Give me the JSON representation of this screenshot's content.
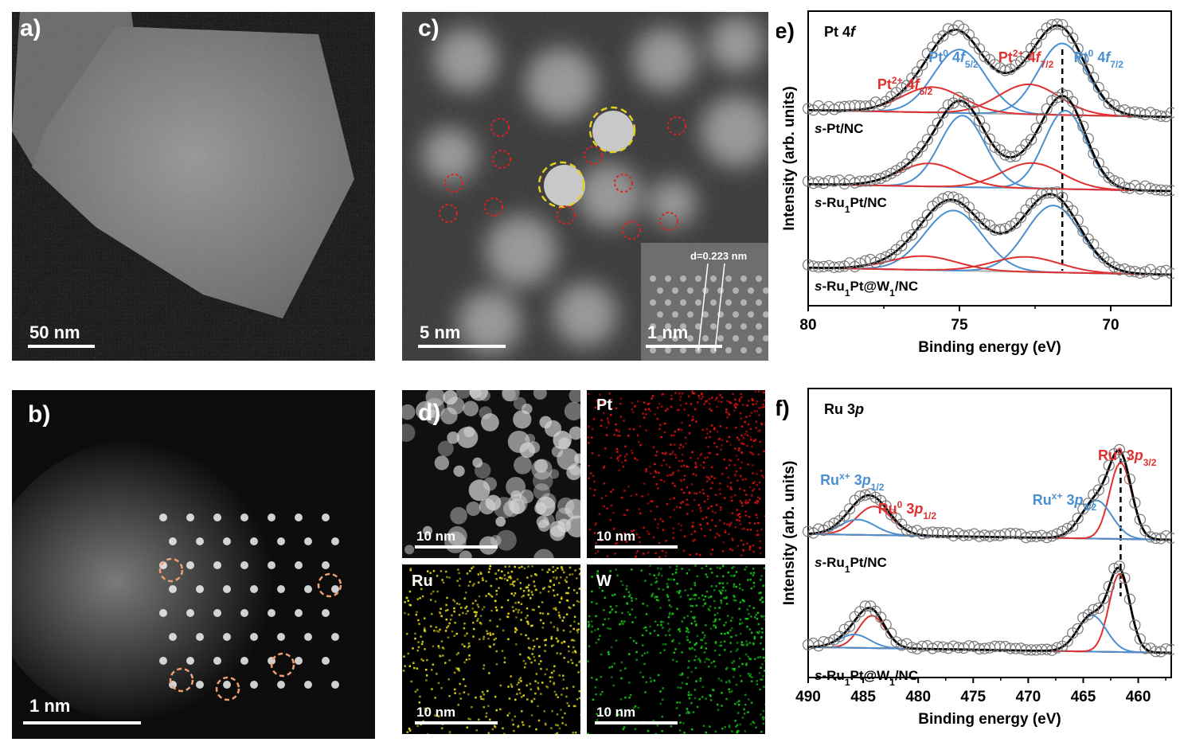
{
  "panel_a": {
    "label": "a)",
    "scalebar": "50 nm"
  },
  "panel_b": {
    "label": "b)",
    "scalebar": "1 nm"
  },
  "panel_c": {
    "label": "c)",
    "scalebar": "5 nm",
    "inset_scalebar": "1 nm",
    "inset_annotation": "d=0.223 nm"
  },
  "panel_d": {
    "label": "d)",
    "maps": [
      {
        "element": "",
        "scalebar": "10 nm",
        "color": "#d8d8d8"
      },
      {
        "element": "Pt",
        "scalebar": "10 nm",
        "color": "#e01010"
      },
      {
        "element": "Ru",
        "scalebar": "10 nm",
        "color": "#e6dc18"
      },
      {
        "element": "W",
        "scalebar": "10 nm",
        "color": "#18c818"
      }
    ]
  },
  "chart_data": [
    {
      "type": "line",
      "panel_label": "e)",
      "title": "Pt 4f",
      "xlabel": "Binding energy (eV)",
      "ylabel": "Intensity (arb. units)",
      "xlim": [
        80,
        68
      ],
      "xticks": [
        80,
        75,
        70
      ],
      "reference_line_x": 71.6,
      "peak_labels": [
        {
          "text": "Pt0 4f5/2",
          "x": 75.2,
          "color": "#4a90d0"
        },
        {
          "text": "Pt2+ 4f5/2",
          "x": 76.8,
          "color": "#e03030"
        },
        {
          "text": "Pt2+ 4f7/2",
          "x": 72.8,
          "color": "#e03030"
        },
        {
          "text": "Pt0 4f7/2",
          "x": 70.4,
          "color": "#4a90d0"
        }
      ],
      "samples": [
        {
          "name": "s-Pt/NC",
          "peaks": [
            {
              "x": 75.0,
              "h": 0.55,
              "w": 0.85,
              "color": "#4a90d0"
            },
            {
              "x": 71.6,
              "h": 0.62,
              "w": 0.8,
              "color": "#4a90d0"
            },
            {
              "x": 75.9,
              "h": 0.22,
              "w": 1.0,
              "color": "#e03030"
            },
            {
              "x": 72.7,
              "h": 0.26,
              "w": 1.0,
              "color": "#e03030"
            }
          ]
        },
        {
          "name": "s-Ru1Pt/NC",
          "peaks": [
            {
              "x": 74.9,
              "h": 0.62,
              "w": 0.75,
              "color": "#4a90d0"
            },
            {
              "x": 71.5,
              "h": 0.68,
              "w": 0.7,
              "color": "#4a90d0"
            },
            {
              "x": 76.0,
              "h": 0.2,
              "w": 1.0,
              "color": "#e03030"
            },
            {
              "x": 72.6,
              "h": 0.22,
              "w": 1.0,
              "color": "#e03030"
            }
          ]
        },
        {
          "name": "s-Ru1Pt@W1/NC",
          "peaks": [
            {
              "x": 75.2,
              "h": 0.52,
              "w": 0.95,
              "color": "#4a90d0"
            },
            {
              "x": 71.9,
              "h": 0.58,
              "w": 0.9,
              "color": "#4a90d0"
            },
            {
              "x": 76.2,
              "h": 0.12,
              "w": 1.1,
              "color": "#e03030"
            },
            {
              "x": 72.8,
              "h": 0.13,
              "w": 1.1,
              "color": "#e03030"
            }
          ]
        }
      ]
    },
    {
      "type": "line",
      "panel_label": "f)",
      "title": "Ru 3p",
      "xlabel": "Binding energy (eV)",
      "ylabel": "Intensity (arb. units)",
      "xlim": [
        490,
        457
      ],
      "xticks": [
        490,
        485,
        480,
        475,
        470,
        465,
        460
      ],
      "reference_line_x": 461.6,
      "peak_labels": [
        {
          "text": "Rux+ 3p1/2",
          "x": 486.0,
          "color": "#4a90d0"
        },
        {
          "text": "Ru0 3p1/2",
          "x": 481.0,
          "color": "#e03030"
        },
        {
          "text": "Rux+ 3p3/2",
          "x": 466.7,
          "color": "#4a90d0"
        },
        {
          "text": "Ru0 3p3/2",
          "x": 461.0,
          "color": "#e03030"
        }
      ],
      "samples": [
        {
          "name": "s-Ru1Pt/NC",
          "peaks": [
            {
              "x": 484.0,
              "h": 0.3,
              "w": 1.6,
              "color": "#e03030"
            },
            {
              "x": 485.5,
              "h": 0.16,
              "w": 1.6,
              "color": "#4a90d0"
            },
            {
              "x": 461.6,
              "h": 0.8,
              "w": 1.0,
              "color": "#e03030"
            },
            {
              "x": 463.8,
              "h": 0.4,
              "w": 1.4,
              "color": "#4a90d0"
            }
          ]
        },
        {
          "name": "s-Ru1Pt@W1/NC",
          "peaks": [
            {
              "x": 484.2,
              "h": 0.34,
              "w": 1.2,
              "color": "#e03030"
            },
            {
              "x": 485.8,
              "h": 0.14,
              "w": 1.4,
              "color": "#4a90d0"
            },
            {
              "x": 461.7,
              "h": 0.82,
              "w": 0.95,
              "color": "#e03030"
            },
            {
              "x": 464.2,
              "h": 0.38,
              "w": 1.3,
              "color": "#4a90d0"
            }
          ]
        }
      ]
    }
  ]
}
